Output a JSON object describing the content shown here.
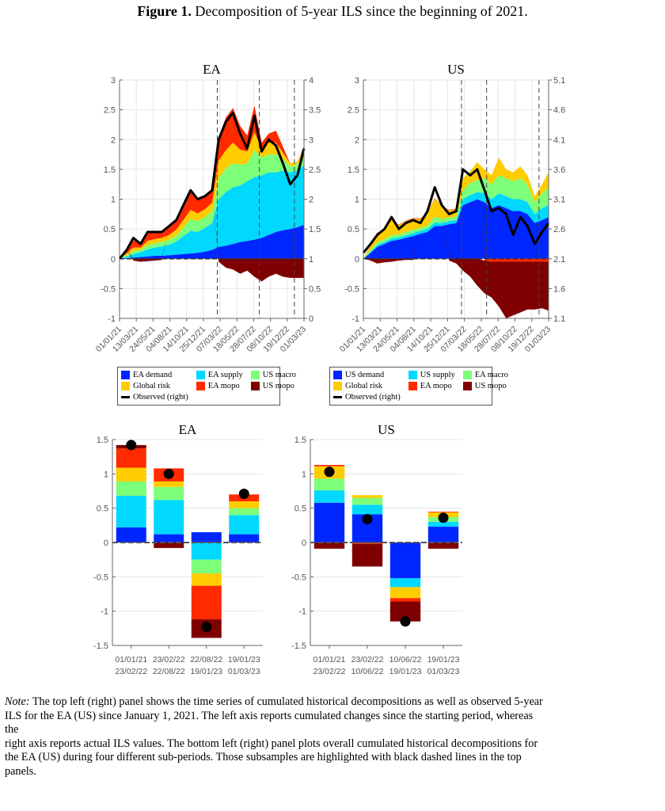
{
  "figure": {
    "label": "Figure 1.",
    "title": "Decomposition of 5-year ILS since the beginning of 2021."
  },
  "colors": {
    "demand": "#0026ff",
    "supply": "#00d8ff",
    "macro": "#7dff7a",
    "global_risk": "#ffcc00",
    "ea_mopo": "#ff2a00",
    "us_mopo": "#7f0000",
    "observed": "#000000"
  },
  "legends": [
    {
      "items": [
        "EA demand",
        "EA supply",
        "US macro",
        "Global risk",
        "EA mopo",
        "US mopo"
      ],
      "observed": "Observed (right)"
    },
    {
      "items": [
        "US demand",
        "US supply",
        "EA macro",
        "Global risk",
        "EA mopo",
        "US mopo"
      ],
      "observed": "Observed (right)"
    }
  ],
  "note": {
    "label": "Note:",
    "lines": [
      " The top left (right) panel shows the time series of cumulated historical decompositions as well as observed 5-year",
      "ILS for the EA (US) since January 1, 2021. The left axis reports cumulated changes since the starting period, whereas",
      "the",
      "right axis reports actual ILS values. The bottom left (right) panel plots overall cumulated historical decompositions for",
      "the EA (US) during four different sub-periods. Those subsamples are highlighted with black dashed lines in the top",
      "panels."
    ]
  },
  "chart_data": [
    {
      "type": "area",
      "title": "EA",
      "stacked": true,
      "x": [
        "2021-01-01",
        "2021-02-01",
        "2021-03-01",
        "2021-04-01",
        "2021-05-01",
        "2021-06-01",
        "2021-07-01",
        "2021-08-01",
        "2021-09-01",
        "2021-10-01",
        "2021-11-01",
        "2021-12-01",
        "2022-01-01",
        "2022-02-01",
        "2022-03-01",
        "2022-04-01",
        "2022-05-01",
        "2022-06-01",
        "2022-07-01",
        "2022-08-01",
        "2022-09-01",
        "2022-10-01",
        "2022-11-01",
        "2022-12-01",
        "2023-01-01",
        "2023-02-01",
        "2023-03-01"
      ],
      "xtick_labels": [
        "01/01/21",
        "13/03/21",
        "24/05/21",
        "04/08/21",
        "14/10/21",
        "25/12/21",
        "07/03/22",
        "18/05/22",
        "28/07/22",
        "08/10/22",
        "19/12/22",
        "01/03/23"
      ],
      "ylim": [
        -1,
        3
      ],
      "yticks": [
        -1,
        -0.5,
        0,
        0.5,
        1,
        1.5,
        2,
        2.5,
        3
      ],
      "ylim_right": [
        0,
        4
      ],
      "yticks_right": [
        0,
        0.5,
        1,
        1.5,
        2,
        2.5,
        3,
        3.5,
        4
      ],
      "vlines": [
        "2022-02-23",
        "2022-08-22",
        "2023-01-19"
      ],
      "grid": true,
      "legend_position": "below",
      "series": [
        {
          "name": "EA demand",
          "color_key": "demand",
          "values": [
            0,
            0.01,
            0.02,
            0.03,
            0.04,
            0.05,
            0.05,
            0.06,
            0.07,
            0.08,
            0.09,
            0.1,
            0.12,
            0.15,
            0.2,
            0.22,
            0.25,
            0.28,
            0.3,
            0.32,
            0.35,
            0.4,
            0.45,
            0.48,
            0.5,
            0.53,
            0.57
          ]
        },
        {
          "name": "EA supply",
          "color_key": "supply",
          "values": [
            0,
            0.03,
            0.06,
            0.08,
            0.12,
            0.14,
            0.16,
            0.18,
            0.22,
            0.3,
            0.38,
            0.35,
            0.4,
            0.45,
            0.8,
            0.9,
            0.95,
            0.95,
            1.0,
            1.05,
            1.05,
            1.05,
            1.0,
            1.0,
            0.95,
            0.95,
            1.0
          ]
        },
        {
          "name": "US macro",
          "color_key": "macro",
          "values": [
            0,
            0.02,
            0.05,
            0.04,
            0.07,
            0.07,
            0.07,
            0.08,
            0.1,
            0.15,
            0.2,
            0.18,
            0.18,
            0.2,
            0.35,
            0.4,
            0.4,
            0.35,
            0.3,
            0.45,
            0.3,
            0.3,
            0.3,
            0.2,
            0.1,
            0.1,
            0.15
          ]
        },
        {
          "name": "Global risk",
          "color_key": "global_risk",
          "values": [
            0,
            0.03,
            0.06,
            0.04,
            0.07,
            0.07,
            0.07,
            0.08,
            0.1,
            0.12,
            0.15,
            0.13,
            0.13,
            0.14,
            0.3,
            0.3,
            0.35,
            0.25,
            0.2,
            0.3,
            0.15,
            0.2,
            0.2,
            0.1,
            0.05,
            0.05,
            0.15
          ]
        },
        {
          "name": "EA mopo",
          "color_key": "ea_mopo",
          "values": [
            0,
            0.06,
            0.12,
            0.08,
            0.13,
            0.13,
            0.12,
            0.15,
            0.16,
            0.25,
            0.33,
            0.26,
            0.24,
            0.23,
            0.4,
            0.55,
            0.58,
            0.4,
            0.27,
            0.45,
            0.1,
            0.15,
            0.2,
            0.1,
            0.0,
            0.0,
            0.02
          ]
        },
        {
          "name": "US mopo",
          "color_key": "us_mopo",
          "values": [
            0,
            0,
            -0.03,
            -0.05,
            -0.04,
            -0.03,
            -0.02,
            0,
            0,
            0,
            0,
            0,
            0,
            0,
            -0.05,
            -0.15,
            -0.18,
            -0.25,
            -0.2,
            -0.3,
            -0.38,
            -0.3,
            -0.25,
            -0.3,
            -0.32,
            -0.32,
            -0.32
          ]
        }
      ],
      "observed": {
        "name": "Observed (right)",
        "values_right": [
          1.0,
          1.15,
          1.35,
          1.25,
          1.45,
          1.45,
          1.45,
          1.55,
          1.65,
          1.9,
          2.15,
          2.0,
          2.05,
          2.15,
          3.0,
          3.3,
          3.45,
          3.1,
          2.85,
          3.4,
          2.8,
          3.0,
          2.9,
          2.6,
          2.25,
          2.4,
          2.85
        ]
      }
    },
    {
      "type": "area",
      "title": "US",
      "stacked": true,
      "x": [
        "2021-01-01",
        "2021-02-01",
        "2021-03-01",
        "2021-04-01",
        "2021-05-01",
        "2021-06-01",
        "2021-07-01",
        "2021-08-01",
        "2021-09-01",
        "2021-10-01",
        "2021-11-01",
        "2021-12-01",
        "2022-01-01",
        "2022-02-01",
        "2022-03-01",
        "2022-04-01",
        "2022-05-01",
        "2022-06-01",
        "2022-07-01",
        "2022-08-01",
        "2022-09-01",
        "2022-10-01",
        "2022-11-01",
        "2022-12-01",
        "2023-01-01",
        "2023-02-01",
        "2023-03-01"
      ],
      "xtick_labels": [
        "01/01/21",
        "13/03/21",
        "24/05/21",
        "04/08/21",
        "14/10/21",
        "25/12/21",
        "07/03/22",
        "18/05/22",
        "28/07/22",
        "08/10/22",
        "19/12/22",
        "01/03/23"
      ],
      "ylim": [
        -1,
        3
      ],
      "yticks": [
        -1,
        -0.5,
        0,
        0.5,
        1,
        1.5,
        2,
        2.5,
        3
      ],
      "ylim_right": [
        1.1,
        5.1
      ],
      "yticks_right": [
        1.1,
        1.6,
        2.1,
        2.6,
        3.1,
        3.6,
        4.1,
        4.6,
        5.1
      ],
      "vlines": [
        "2022-02-23",
        "2022-06-10",
        "2023-01-19"
      ],
      "grid": true,
      "legend_position": "below",
      "series": [
        {
          "name": "US demand",
          "color_key": "demand",
          "values": [
            0,
            0.1,
            0.2,
            0.25,
            0.3,
            0.32,
            0.35,
            0.38,
            0.42,
            0.45,
            0.55,
            0.55,
            0.58,
            0.6,
            0.9,
            0.95,
            1.0,
            0.95,
            0.85,
            0.9,
            0.85,
            0.8,
            0.8,
            0.75,
            0.6,
            0.65,
            0.7
          ]
        },
        {
          "name": "US supply",
          "color_key": "supply",
          "values": [
            0,
            0.02,
            0.03,
            0.03,
            0.04,
            0.04,
            0.04,
            0.05,
            0.05,
            0.05,
            0.06,
            0.05,
            0.05,
            0.05,
            0.1,
            0.12,
            0.12,
            0.15,
            0.15,
            0.2,
            0.2,
            0.2,
            0.2,
            0.2,
            0.15,
            0.2,
            0.2
          ]
        },
        {
          "name": "EA macro",
          "color_key": "macro",
          "values": [
            0,
            0.03,
            0.05,
            0.05,
            0.06,
            0.05,
            0.06,
            0.06,
            0.05,
            0.06,
            0.1,
            0.07,
            0.06,
            0.06,
            0.15,
            0.2,
            0.2,
            0.25,
            0.25,
            0.3,
            0.3,
            0.3,
            0.35,
            0.3,
            0.2,
            0.25,
            0.3
          ]
        },
        {
          "name": "Global risk",
          "color_key": "global_risk",
          "values": [
            0,
            0.08,
            0.15,
            0.15,
            0.25,
            0.15,
            0.18,
            0.18,
            0.15,
            0.2,
            0.3,
            0.2,
            0.12,
            0.12,
            0.2,
            0.2,
            0.3,
            0.15,
            0.15,
            0.3,
            0.15,
            0.15,
            0.2,
            0.15,
            0.1,
            0.15,
            0.25
          ]
        },
        {
          "name": "EA mopo",
          "color_key": "ea_mopo",
          "values": [
            0,
            0.01,
            0.01,
            0.01,
            0.02,
            0.01,
            0.01,
            0.01,
            0.01,
            0.01,
            0.01,
            0.01,
            0.01,
            0.01,
            0,
            0,
            0,
            -0.03,
            -0.05,
            -0.05,
            -0.05,
            -0.05,
            -0.05,
            -0.05,
            -0.05,
            -0.05,
            -0.05
          ]
        },
        {
          "name": "US mopo",
          "color_key": "us_mopo",
          "values": [
            0,
            -0.03,
            -0.08,
            -0.06,
            -0.05,
            -0.03,
            -0.02,
            -0.02,
            0,
            0,
            0,
            0,
            -0.03,
            -0.08,
            -0.2,
            -0.3,
            -0.45,
            -0.55,
            -0.6,
            -0.75,
            -0.95,
            -0.9,
            -0.85,
            -0.8,
            -0.8,
            -0.78,
            -0.82
          ]
        }
      ],
      "observed": {
        "name": "Observed (right)",
        "values_right": [
          2.2,
          2.35,
          2.5,
          2.6,
          2.8,
          2.6,
          2.7,
          2.75,
          2.7,
          2.9,
          3.3,
          3.0,
          2.85,
          2.9,
          3.6,
          3.5,
          3.6,
          3.25,
          2.9,
          2.95,
          2.85,
          2.5,
          2.8,
          2.65,
          2.35,
          2.55,
          2.7
        ]
      }
    },
    {
      "type": "bar",
      "title": "EA",
      "stacked": true,
      "categories": [
        [
          "01/01/21",
          "23/02/22"
        ],
        [
          "23/02/22",
          "22/08/22"
        ],
        [
          "22/08/22",
          "19/01/23"
        ],
        [
          "19/01/23",
          "01/03/23"
        ]
      ],
      "ylim": [
        -1.5,
        1.5
      ],
      "yticks": [
        -1.5,
        -1,
        -0.5,
        0,
        0.5,
        1,
        1.5
      ],
      "series": [
        {
          "name": "EA demand",
          "color_key": "demand",
          "values": [
            0.22,
            0.12,
            0.15,
            0.12
          ]
        },
        {
          "name": "EA supply",
          "color_key": "supply",
          "values": [
            0.46,
            0.5,
            -0.25,
            0.28
          ]
        },
        {
          "name": "US macro",
          "color_key": "macro",
          "values": [
            0.21,
            0.19,
            -0.2,
            0.1
          ]
        },
        {
          "name": "Global risk",
          "color_key": "global_risk",
          "values": [
            0.2,
            0.08,
            -0.18,
            0.1
          ]
        },
        {
          "name": "EA mopo",
          "color_key": "ea_mopo",
          "values": [
            0.28,
            0.19,
            -0.49,
            0.1
          ]
        },
        {
          "name": "US mopo",
          "color_key": "us_mopo",
          "values": [
            0.05,
            -0.08,
            -0.27,
            0.0
          ]
        }
      ],
      "observed": [
        1.42,
        1.0,
        -1.23,
        0.71
      ]
    },
    {
      "type": "bar",
      "title": "US",
      "stacked": true,
      "categories": [
        [
          "01/01/21",
          "23/02/22"
        ],
        [
          "23/02/22",
          "10/06/22"
        ],
        [
          "10/06/22",
          "19/01/23"
        ],
        [
          "19/01/23",
          "01/03/23"
        ]
      ],
      "ylim": [
        -1.5,
        1.5
      ],
      "yticks": [
        -1.5,
        -1,
        -0.5,
        0,
        0.5,
        1,
        1.5
      ],
      "series": [
        {
          "name": "US demand",
          "color_key": "demand",
          "values": [
            0.58,
            0.41,
            -0.52,
            0.23
          ]
        },
        {
          "name": "US supply",
          "color_key": "supply",
          "values": [
            0.18,
            0.14,
            -0.13,
            0.07
          ]
        },
        {
          "name": "EA macro",
          "color_key": "macro",
          "values": [
            0.17,
            0.1,
            0.0,
            0.07
          ]
        },
        {
          "name": "Global risk",
          "color_key": "global_risk",
          "values": [
            0.18,
            0.04,
            -0.16,
            0.07
          ]
        },
        {
          "name": "EA mopo",
          "color_key": "ea_mopo",
          "values": [
            0.02,
            -0.02,
            -0.05,
            0.01
          ]
        },
        {
          "name": "US mopo",
          "color_key": "us_mopo",
          "values": [
            -0.09,
            -0.33,
            -0.29,
            -0.09
          ]
        }
      ],
      "observed": [
        1.03,
        0.34,
        -1.15,
        0.36
      ]
    }
  ]
}
